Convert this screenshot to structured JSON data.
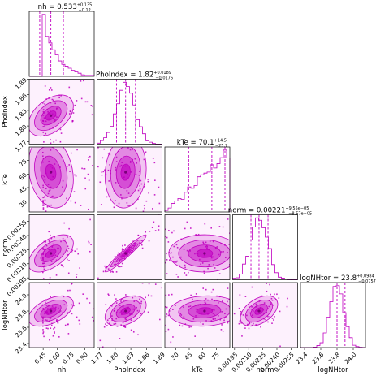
{
  "chart_data": {
    "type": "corner",
    "color": "#c000c0",
    "parameters": [
      {
        "name": "nh",
        "label": "nh",
        "range": [
          0.3,
          1.0
        ],
        "ticks": [
          0.45,
          0.6,
          0.75,
          0.9
        ],
        "tick_labels": [
          "0.45",
          "0.60",
          "0.75",
          "0.90"
        ],
        "median": 0.533,
        "err_plus": 0.135,
        "err_minus": 0.12,
        "title_main": "nh = 0.533",
        "title_sup": "+0.135",
        "title_sub": "−0.12",
        "sigma": 0.11,
        "skew": 0.07
      },
      {
        "name": "PhoIndex",
        "label": "PhoIndex",
        "range": [
          1.765,
          1.89
        ],
        "ticks": [
          1.77,
          1.8,
          1.83,
          1.86,
          1.89
        ],
        "tick_labels": [
          "1.77",
          "1.80",
          "1.83",
          "1.86",
          "1.89"
        ],
        "median": 1.82,
        "err_plus": 0.0189,
        "err_minus": 0.0176,
        "title_main": "PhoIndex = 1.82",
        "title_sup": "+0.0189",
        "title_sub": "−0.0176",
        "sigma": 0.018,
        "skew": 0
      },
      {
        "name": "kTe",
        "label": "kTe",
        "range": [
          18,
          90
        ],
        "ticks": [
          30,
          45,
          60,
          75
        ],
        "tick_labels": [
          "30",
          "45",
          "60",
          "75"
        ],
        "median": 70.1,
        "err_plus": 14.5,
        "err_minus": 25.7,
        "title_main": "kTe = 70.1",
        "title_sup": "+14.5",
        "title_sub": "−25.7",
        "sigma": 30,
        "skew": 0
      },
      {
        "name": "norm",
        "label": "norm",
        "range": [
          0.00193,
          0.00262
        ],
        "ticks": [
          0.00195,
          0.0021,
          0.00225,
          0.0024,
          0.00255
        ],
        "tick_labels": [
          "0.00195",
          "0.00210",
          "0.00225",
          "0.00240",
          "0.00255"
        ],
        "median": 0.00221,
        "err_plus": 9.55e-05,
        "err_minus": 8.57e-05,
        "title_main": "norm = 0.00221",
        "title_sup": "+9.55e−05",
        "title_sub": "−8.57e−05",
        "sigma": 9e-05,
        "skew": 0
      },
      {
        "name": "logNHtor",
        "label": "logNHtor",
        "range": [
          23.35,
          24.15
        ],
        "ticks": [
          23.4,
          23.6,
          23.8,
          24.0
        ],
        "tick_labels": [
          "23.4",
          "23.6",
          "23.8",
          "24.0"
        ],
        "median": 23.8,
        "err_plus": 0.0984,
        "err_minus": 0.0757,
        "title_main": "logNHtor = 23.8",
        "title_sup": "+0.0984",
        "title_sub": "−0.0757",
        "sigma": 0.085,
        "skew": 0
      }
    ],
    "correlations": {
      "1_0": 0.45,
      "2_0": -0.2,
      "2_1": 0.1,
      "3_0": 0.55,
      "3_1": 0.96,
      "3_2": 0.0,
      "4_0": 0.5,
      "4_1": 0.4,
      "4_2": 0.1,
      "4_3": 0.45
    }
  }
}
